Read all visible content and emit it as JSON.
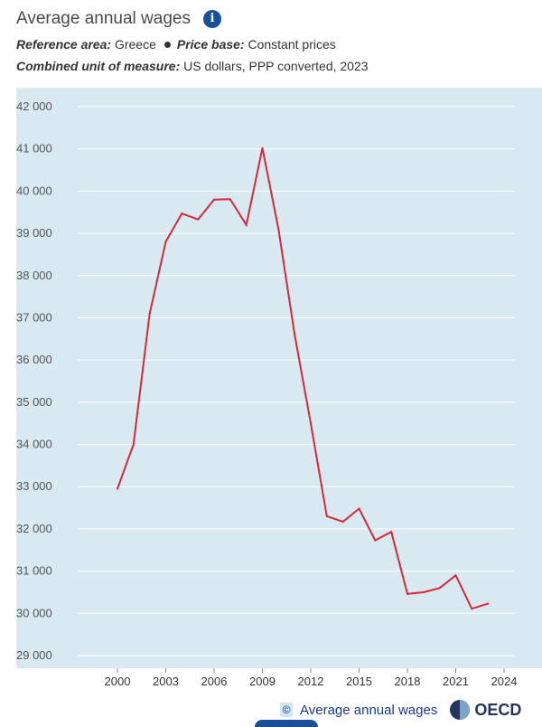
{
  "header": {
    "title": "Average annual wages",
    "reference_label": "Reference area:",
    "reference_value": "Greece",
    "price_label": "Price base:",
    "price_value": "Constant prices",
    "unit_label": "Combined unit of measure:",
    "unit_value": "US dollars, PPP converted, 2023",
    "info_icon": "info-icon"
  },
  "footer": {
    "copyright_icon": "©",
    "link_text": "Average annual wages",
    "logo_text": "OECD"
  },
  "colors": {
    "plot_background": "#d9e9f1",
    "line": "#d62839",
    "grid": "#ffffff"
  },
  "chart_data": {
    "type": "line",
    "title": "Average annual wages",
    "xlabel": "",
    "ylabel": "",
    "x": [
      2000,
      2001,
      2002,
      2003,
      2004,
      2005,
      2006,
      2007,
      2008,
      2009,
      2010,
      2011,
      2012,
      2013,
      2014,
      2015,
      2016,
      2017,
      2018,
      2019,
      2020,
      2021,
      2022,
      2023
    ],
    "series": [
      {
        "name": "Greece",
        "values": [
          32950,
          34000,
          37100,
          38800,
          39470,
          39330,
          39800,
          39810,
          39200,
          41020,
          39100,
          36600,
          34500,
          32300,
          32170,
          32480,
          31730,
          31930,
          30460,
          30500,
          30600,
          30900,
          30110,
          30230
        ]
      }
    ],
    "x_ticks": [
      2000,
      2003,
      2006,
      2009,
      2012,
      2015,
      2018,
      2021,
      2024
    ],
    "x_tick_labels": [
      "2000",
      "2003",
      "2006",
      "2009",
      "2012",
      "2015",
      "2018",
      "2021",
      "2024"
    ],
    "y_ticks": [
      29000,
      30000,
      31000,
      32000,
      33000,
      34000,
      35000,
      36000,
      37000,
      38000,
      39000,
      40000,
      41000,
      42000
    ],
    "y_tick_labels": [
      "29 000",
      "30 000",
      "31 000",
      "32 000",
      "33 000",
      "34 000",
      "35 000",
      "36 000",
      "37 000",
      "38 000",
      "39 000",
      "40 000",
      "41 000",
      "42 000"
    ],
    "xlim": [
      1998,
      2025
    ],
    "ylim": [
      28700,
      42450
    ],
    "grid": true,
    "legend": "none"
  }
}
